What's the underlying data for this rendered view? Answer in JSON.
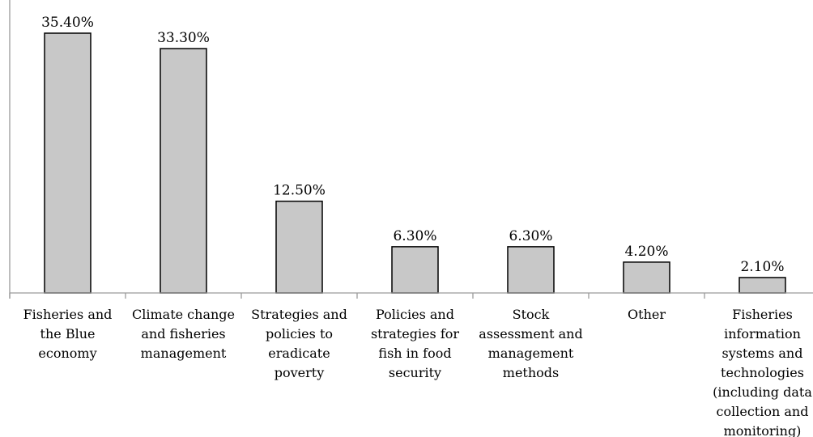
{
  "chart_data": {
    "type": "bar",
    "title": "",
    "xlabel": "",
    "ylabel": "",
    "ylim": [
      0,
      35.4
    ],
    "grid": false,
    "categories": [
      [
        "Fisheries and",
        "the Blue",
        "economy"
      ],
      [
        "Climate change",
        "and fisheries",
        "management"
      ],
      [
        "Strategies and",
        "policies to",
        "eradicate",
        "poverty"
      ],
      [
        "Policies and",
        "strategies for",
        "fish in food",
        "security"
      ],
      [
        "Stock",
        "assessment and",
        "management",
        "methods"
      ],
      [
        "Other"
      ],
      [
        "Fisheries",
        "information",
        "systems and",
        "technologies",
        "(including data",
        "collection and",
        "monitoring)"
      ]
    ],
    "values": [
      35.4,
      33.3,
      12.5,
      6.3,
      6.3,
      4.2,
      2.1
    ],
    "value_labels": [
      "35.40%",
      "33.30%",
      "12.50%",
      "6.30%",
      "6.30%",
      "4.20%",
      "2.10%"
    ],
    "bar_color": "#c8c8c8",
    "edge_color": "#000000"
  }
}
